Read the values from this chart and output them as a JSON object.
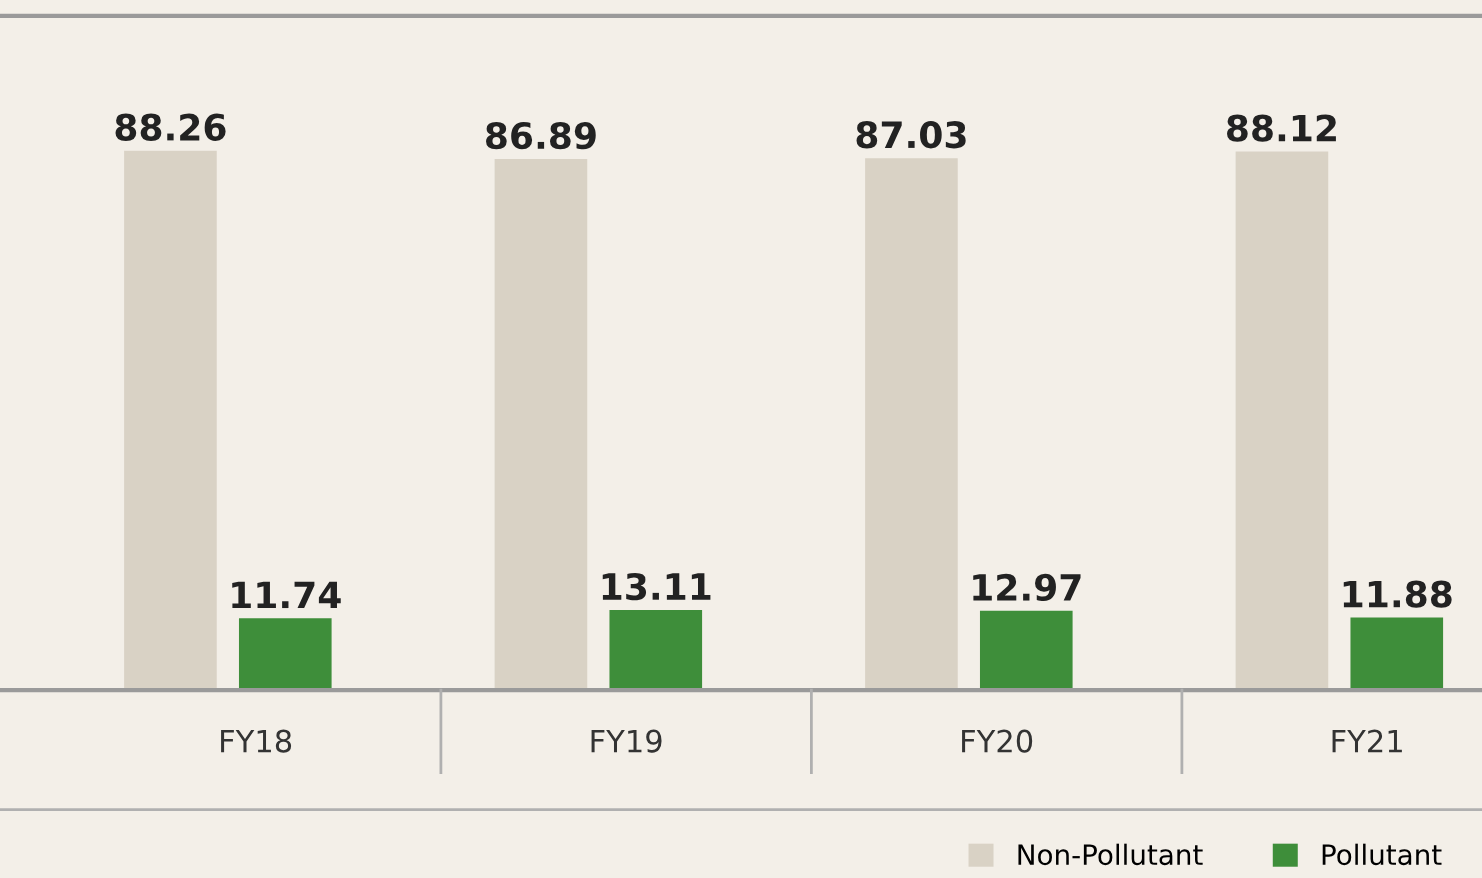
{
  "chart_data": {
    "type": "bar",
    "categories": [
      "FY18",
      "FY19",
      "FY20",
      "FY21"
    ],
    "series": [
      {
        "name": "Non-Pollutant",
        "color": "#d9d2c5",
        "values": [
          88.26,
          86.89,
          87.03,
          88.12
        ]
      },
      {
        "name": "Pollutant",
        "color": "#3e8e3a",
        "values": [
          11.74,
          13.11,
          12.97,
          11.88
        ]
      }
    ],
    "data_labels": true,
    "legend": "bottom right",
    "grid": false
  }
}
